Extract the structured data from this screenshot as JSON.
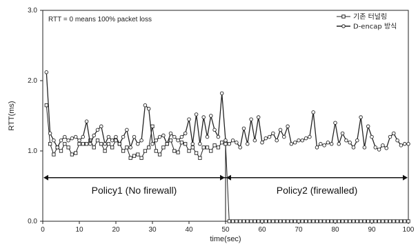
{
  "chart_data": {
    "type": "line",
    "xlabel": "time(sec)",
    "ylabel": "RTT(ms)",
    "xlim": [
      0,
      100
    ],
    "ylim": [
      0,
      3.0
    ],
    "xticks": [
      "0",
      "10",
      "20",
      "30",
      "40",
      "50",
      "60",
      "70",
      "80",
      "90",
      "100"
    ],
    "yticks": [
      "0.0",
      "1.0",
      "2.0",
      "3.0"
    ],
    "legend_position": "top-right",
    "annotation": "RTT = 0 means 100% packet loss",
    "policy_labels": [
      "Policy1 (No firewall)",
      "Policy2 (firewalled)"
    ],
    "policy_boundary": 50,
    "series": [
      {
        "name": "기존 터널링",
        "marker": "square",
        "color": "#222222",
        "x": [
          1,
          2,
          3,
          4,
          5,
          6,
          7,
          8,
          9,
          10,
          11,
          12,
          13,
          14,
          15,
          16,
          17,
          18,
          19,
          20,
          21,
          22,
          23,
          24,
          25,
          26,
          27,
          28,
          29,
          30,
          31,
          32,
          33,
          34,
          35,
          36,
          37,
          38,
          39,
          40,
          41,
          42,
          43,
          44,
          45,
          46,
          47,
          48,
          49,
          50,
          51,
          52,
          53,
          54,
          55,
          56,
          57,
          58,
          59,
          60,
          61,
          62,
          63,
          64,
          65,
          66,
          67,
          68,
          69,
          70,
          71,
          72,
          73,
          74,
          75,
          76,
          77,
          78,
          79,
          80,
          81,
          82,
          83,
          84,
          85,
          86,
          87,
          88,
          89,
          90,
          91,
          92,
          93,
          94,
          95,
          96,
          97,
          98,
          99,
          100
        ],
        "values": [
          1.65,
          1.1,
          0.95,
          1.05,
          1.0,
          1.1,
          1.05,
          0.95,
          0.97,
          1.1,
          1.1,
          1.1,
          1.15,
          1.05,
          1.15,
          1.1,
          1.0,
          1.1,
          1.05,
          1.15,
          1.1,
          1.0,
          1.05,
          0.9,
          0.93,
          0.95,
          0.9,
          1.0,
          1.05,
          1.35,
          1.0,
          0.95,
          1.05,
          1.1,
          1.15,
          1.0,
          0.98,
          1.12,
          1.1,
          1.0,
          1.05,
          0.97,
          0.9,
          1.05,
          1.05,
          1.0,
          1.08,
          1.05,
          1.12,
          1.1,
          0,
          0,
          0,
          0,
          0,
          0,
          0,
          0,
          0,
          0,
          0,
          0,
          0,
          0,
          0,
          0,
          0,
          0,
          0,
          0,
          0,
          0,
          0,
          0,
          0,
          0,
          0,
          0,
          0,
          0,
          0,
          0,
          0,
          0,
          0,
          0,
          0,
          0,
          0,
          0,
          0,
          0,
          0,
          0,
          0,
          0,
          0,
          0,
          0,
          0
        ]
      },
      {
        "name": "D-encap 방식",
        "marker": "circle",
        "color": "#222222",
        "x": [
          1,
          2,
          3,
          4,
          5,
          6,
          7,
          8,
          9,
          10,
          11,
          12,
          13,
          14,
          15,
          16,
          17,
          18,
          19,
          20,
          21,
          22,
          23,
          24,
          25,
          26,
          27,
          28,
          29,
          30,
          31,
          32,
          33,
          34,
          35,
          36,
          37,
          38,
          39,
          40,
          41,
          42,
          43,
          44,
          45,
          46,
          47,
          48,
          49,
          50,
          51,
          52,
          53,
          54,
          55,
          56,
          57,
          58,
          59,
          60,
          61,
          62,
          63,
          64,
          65,
          66,
          67,
          68,
          69,
          70,
          71,
          72,
          73,
          74,
          75,
          76,
          77,
          78,
          79,
          80,
          81,
          82,
          83,
          84,
          85,
          86,
          87,
          88,
          89,
          90,
          91,
          92,
          93,
          94,
          95,
          96,
          97,
          98,
          99,
          100
        ],
        "values": [
          2.12,
          1.25,
          1.15,
          1.05,
          1.15,
          1.2,
          1.15,
          1.18,
          1.2,
          1.15,
          1.2,
          1.42,
          1.1,
          1.22,
          1.3,
          1.35,
          1.1,
          1.2,
          1.15,
          1.2,
          1.1,
          1.2,
          1.3,
          1.05,
          1.2,
          1.1,
          1.15,
          1.65,
          1.6,
          1.1,
          1.15,
          1.2,
          1.22,
          1.1,
          1.25,
          1.2,
          1.15,
          1.2,
          1.25,
          1.45,
          1.1,
          1.52,
          1.1,
          1.48,
          1.2,
          1.5,
          1.3,
          1.2,
          1.82,
          1.15,
          1.1,
          1.15,
          1.12,
          1.05,
          1.32,
          1.1,
          1.45,
          1.15,
          1.48,
          1.12,
          1.18,
          1.2,
          1.25,
          1.15,
          1.3,
          1.2,
          1.35,
          1.1,
          1.12,
          1.15,
          1.15,
          1.18,
          1.2,
          1.55,
          1.05,
          1.1,
          1.08,
          1.12,
          1.1,
          1.4,
          1.1,
          1.25,
          1.15,
          1.12,
          1.05,
          1.15,
          1.48,
          1.05,
          1.35,
          1.2,
          1.05,
          1.02,
          1.08,
          1.04,
          1.2,
          1.25,
          1.15,
          1.08,
          1.1,
          1.1
        ]
      }
    ]
  }
}
